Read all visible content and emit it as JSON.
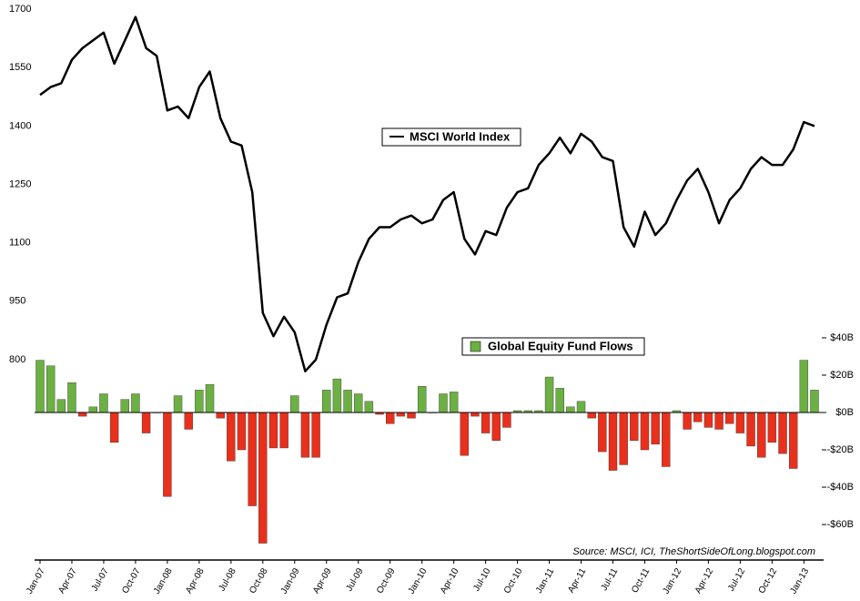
{
  "chart_data": {
    "type": "combo",
    "categories": [
      "Jan-07",
      null,
      null,
      "Apr-07",
      null,
      null,
      "Jul-07",
      null,
      null,
      "Oct-07",
      null,
      null,
      "Jan-08",
      null,
      null,
      "Apr-08",
      null,
      null,
      "Jul-08",
      null,
      null,
      "Oct-08",
      null,
      null,
      "Jan-09",
      null,
      null,
      "Apr-09",
      null,
      null,
      "Jul-09",
      null,
      null,
      "Oct-09",
      null,
      null,
      "Jan-10",
      null,
      null,
      "Apr-10",
      null,
      null,
      "Jul-10",
      null,
      null,
      "Oct-10",
      null,
      null,
      "Jan-11",
      null,
      null,
      "Apr-11",
      null,
      null,
      "Jul-11",
      null,
      null,
      "Oct-11",
      null,
      null,
      "Jan-12",
      null,
      null,
      "Apr-12",
      null,
      null,
      "Jul-12",
      null,
      null,
      "Oct-12",
      null,
      null,
      "Jan-13",
      null
    ],
    "series": [
      {
        "name": "MSCI World Index",
        "type": "line",
        "color": "#000000",
        "values": [
          1480,
          1500,
          1510,
          1570,
          1600,
          1620,
          1640,
          1560,
          1620,
          1680,
          1600,
          1580,
          1440,
          1450,
          1420,
          1500,
          1540,
          1420,
          1360,
          1350,
          1230,
          920,
          860,
          910,
          870,
          770,
          800,
          890,
          960,
          970,
          1050,
          1110,
          1140,
          1140,
          1160,
          1170,
          1150,
          1160,
          1210,
          1230,
          1110,
          1070,
          1130,
          1120,
          1190,
          1230,
          1240,
          1300,
          1330,
          1370,
          1330,
          1380,
          1360,
          1320,
          1310,
          1140,
          1090,
          1180,
          1120,
          1150,
          1210,
          1260,
          1290,
          1230,
          1150,
          1210,
          1240,
          1290,
          1320,
          1300,
          1300,
          1340,
          1410,
          1400
        ]
      },
      {
        "name": "Global Equity Fund Flows",
        "type": "bar",
        "axis": "y2",
        "color": "#6cb043",
        "negative_color": "#e8301c",
        "values": [
          28,
          25,
          7,
          16,
          -2,
          3,
          10,
          -16,
          7,
          10,
          -11,
          0,
          -45,
          9,
          -9,
          12,
          15,
          -3,
          -26,
          -20,
          -50,
          -70,
          -19,
          -19,
          9,
          -24,
          -24,
          12,
          18,
          12,
          10,
          6,
          -1,
          -6,
          -2,
          -3,
          14,
          0,
          10,
          11,
          -23,
          -2,
          -11,
          -15,
          -8,
          1,
          1,
          1,
          19,
          13,
          3,
          6,
          -3,
          -21,
          -31,
          -28,
          -15,
          -20,
          -17,
          -29,
          1,
          -9,
          -5,
          -8,
          -9,
          -6,
          -11,
          -18,
          -24,
          -16,
          -22,
          -30,
          28,
          12
        ]
      }
    ],
    "ylim": [
      285,
      1705
    ],
    "yticks": [
      800,
      950,
      1100,
      1250,
      1400,
      1550,
      1700
    ],
    "y2lim": [
      -79,
      217
    ],
    "y2ticks": [
      {
        "value": -60,
        "label": "-$60B"
      },
      {
        "value": -40,
        "label": "-$40B"
      },
      {
        "value": -20,
        "label": "-$20B"
      },
      {
        "value": 0,
        "label": "$0B"
      },
      {
        "value": 20,
        "label": "$20B"
      },
      {
        "value": 40,
        "label": "$40B"
      }
    ],
    "annotation": "Source: MSCI, ICI, TheShortSideOfLong.blogspot.com"
  }
}
